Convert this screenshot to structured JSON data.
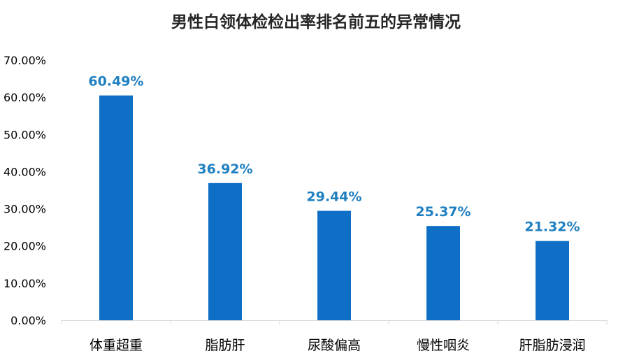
{
  "chart_data": {
    "type": "bar",
    "title": "男性白领体检检出率排名前五的异常情况",
    "categories": [
      "体重超重",
      "脂肪肝",
      "尿酸偏高",
      "慢性咽炎",
      "肝脂肪浸润"
    ],
    "values": [
      60.49,
      36.92,
      29.44,
      25.37,
      21.32
    ],
    "data_labels": [
      "60.49%",
      "36.92%",
      "29.44%",
      "25.37%",
      "21.32%"
    ],
    "y_ticks": [
      "0.00%",
      "10.00%",
      "20.00%",
      "30.00%",
      "40.00%",
      "50.00%",
      "60.00%",
      "70.00%"
    ],
    "ylim": [
      0,
      70
    ],
    "xlabel": "",
    "ylabel": "",
    "grid": false,
    "legend": "none",
    "colors": {
      "bar": "#0f6fc6",
      "data_label": "#1f7fc0",
      "axis": "#d9d9d9"
    }
  }
}
